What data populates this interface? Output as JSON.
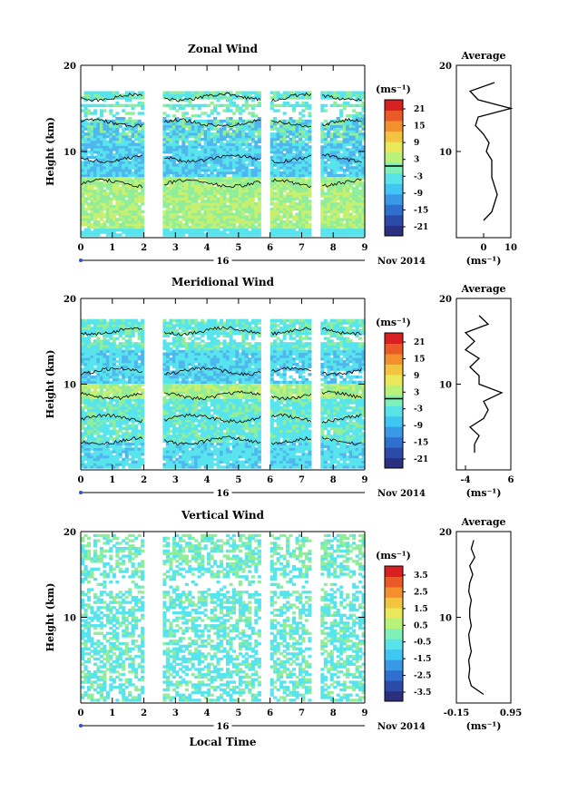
{
  "date_label": "Nov 2014",
  "day_label": "16",
  "x_axis_title": "Local Time",
  "x_ticks": [
    "0",
    "1",
    "2",
    "3",
    "4",
    "5",
    "6",
    "7",
    "8",
    "9"
  ],
  "height_label": "Height (km)",
  "unit_label": "(ms⁻¹)",
  "average_title": "Average",
  "colors": {
    "scale": [
      "#2b2f7f",
      "#2c4aa8",
      "#2f6fd0",
      "#3a99e6",
      "#3fc6f2",
      "#59e3e8",
      "#7ff0b8",
      "#b8f27a",
      "#e8e85a",
      "#f2c440",
      "#f29030",
      "#ea5a28",
      "#d82020"
    ],
    "cyan": "#58e4ec",
    "mid_blue": "#4fb6ee",
    "green": "#90ee9a",
    "yellowgreen": "#c8f070"
  },
  "chart_data": [
    {
      "type": "heatmap",
      "title": "Zonal Wind",
      "xlabel": "Local Time",
      "ylabel": "Height (km)",
      "xlim": [
        0,
        9
      ],
      "ylim": [
        0,
        20
      ],
      "yticks": [
        "20",
        "10"
      ],
      "data_gaps_hours": [
        [
          2.0,
          2.6
        ],
        [
          5.7,
          6.0
        ],
        [
          7.3,
          7.6
        ]
      ],
      "colorbar": {
        "ticks": [
          "21",
          "15",
          "9",
          "3",
          "-3",
          "-9",
          "-15",
          "-21"
        ],
        "range": [
          -24,
          24
        ],
        "zero_line": true
      },
      "average_profile": {
        "xlim": [
          -10,
          10
        ],
        "xticks": [
          "0",
          "10"
        ],
        "height_km": [
          2,
          3,
          4,
          5,
          6,
          7,
          8,
          9,
          10,
          11,
          12,
          13,
          14,
          15,
          16,
          17,
          18
        ],
        "value": [
          0,
          3,
          4,
          5,
          4,
          3,
          3,
          3,
          1,
          2,
          0,
          -3,
          -2,
          10,
          -2,
          -5,
          4
        ]
      }
    },
    {
      "type": "heatmap",
      "title": "Meridional Wind",
      "xlabel": "Local Time",
      "ylabel": "Height (km)",
      "xlim": [
        0,
        9
      ],
      "ylim": [
        0,
        20
      ],
      "yticks": [
        "20",
        "10"
      ],
      "data_gaps_hours": [
        [
          2.0,
          2.6
        ],
        [
          5.7,
          6.0
        ],
        [
          7.3,
          7.6
        ]
      ],
      "colorbar": {
        "ticks": [
          "21",
          "15",
          "9",
          "3",
          "-3",
          "-9",
          "-15",
          "-21"
        ],
        "range": [
          -24,
          24
        ],
        "zero_line": true
      },
      "average_profile": {
        "xlim": [
          -6,
          6
        ],
        "xticks": [
          "-4",
          "6"
        ],
        "height_km": [
          2,
          3,
          4,
          5,
          6,
          7,
          8,
          9,
          10,
          11,
          12,
          13,
          14,
          15,
          16,
          17,
          18
        ],
        "value": [
          -2,
          -2,
          -1,
          -3,
          0,
          1,
          0,
          4,
          -1,
          -1,
          -3,
          -1,
          -4,
          -2,
          -4,
          1,
          -1
        ]
      }
    },
    {
      "type": "heatmap",
      "title": "Vertical Wind",
      "xlabel": "Local Time",
      "ylabel": "Height (km)",
      "xlim": [
        0,
        9
      ],
      "ylim": [
        0,
        20
      ],
      "yticks": [
        "20",
        "10"
      ],
      "data_gaps_hours": [
        [
          2.0,
          2.6
        ],
        [
          5.7,
          6.0
        ],
        [
          7.3,
          7.6
        ]
      ],
      "colorbar": {
        "ticks": [
          "3.5",
          "2.5",
          "1.5",
          "0.5",
          "-0.5",
          "-1.5",
          "-2.5",
          "-3.5"
        ],
        "range": [
          -4,
          4
        ],
        "zero_line": false
      },
      "average_profile": {
        "xlim": [
          -0.15,
          0.95
        ],
        "xticks": [
          "-0.15",
          "0.95"
        ],
        "height_km": [
          1,
          2,
          3,
          4,
          5,
          6,
          7,
          8,
          9,
          10,
          11,
          12,
          13,
          14,
          15,
          16,
          17,
          18,
          19
        ],
        "value": [
          0.4,
          0.15,
          0.1,
          0.12,
          0.1,
          0.15,
          0.12,
          0.1,
          0.15,
          0.12,
          0.12,
          0.15,
          0.1,
          0.12,
          0.18,
          0.12,
          0.22,
          0.15,
          0.2
        ]
      }
    }
  ]
}
